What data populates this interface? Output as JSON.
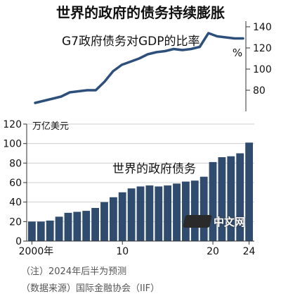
{
  "header": {
    "title": "世界的政府的债务持续膨胀"
  },
  "chart_data": [
    {
      "type": "line",
      "label": "G7政府债务对GDP的比率",
      "unit": "%",
      "x": [
        2000,
        2001,
        2002,
        2003,
        2004,
        2005,
        2006,
        2007,
        2008,
        2009,
        2010,
        2011,
        2012,
        2013,
        2014,
        2015,
        2016,
        2017,
        2018,
        2019,
        2020,
        2021,
        2022,
        2023,
        2024
      ],
      "values": [
        68,
        70,
        72,
        74,
        78,
        79,
        80,
        80,
        88,
        98,
        104,
        107,
        110,
        114,
        116,
        117,
        119,
        118,
        119,
        121,
        134,
        131,
        130,
        129,
        129
      ],
      "ylim": [
        60,
        140
      ],
      "yticks": [
        "140",
        "120",
        "100",
        "80"
      ],
      "color": "#2d4f7c"
    },
    {
      "type": "bar",
      "label": "世界的政府债务",
      "unit": "万亿美元",
      "x": [
        2000,
        2001,
        2002,
        2003,
        2004,
        2005,
        2006,
        2007,
        2008,
        2009,
        2010,
        2011,
        2012,
        2013,
        2014,
        2015,
        2016,
        2017,
        2018,
        2019,
        2020,
        2021,
        2022,
        2023,
        2024
      ],
      "values": [
        20,
        20,
        21,
        25,
        29,
        30,
        31,
        34,
        40,
        45,
        50,
        54,
        56,
        57,
        56,
        57,
        59,
        61,
        62,
        66,
        81,
        86,
        87,
        90,
        101
      ],
      "ylim": [
        0,
        120
      ],
      "yticks": [
        "120",
        "100",
        "80",
        "60",
        "40",
        "20",
        "0"
      ],
      "xticks": [
        "2000年",
        "10",
        "20",
        "24"
      ],
      "color": "#2f4b6d"
    }
  ],
  "notes": {
    "note1": "（注）2024年后半为预测",
    "note2": "（数据来源）国际金融协会（IIF）"
  },
  "watermark": {
    "text": "中文网"
  }
}
